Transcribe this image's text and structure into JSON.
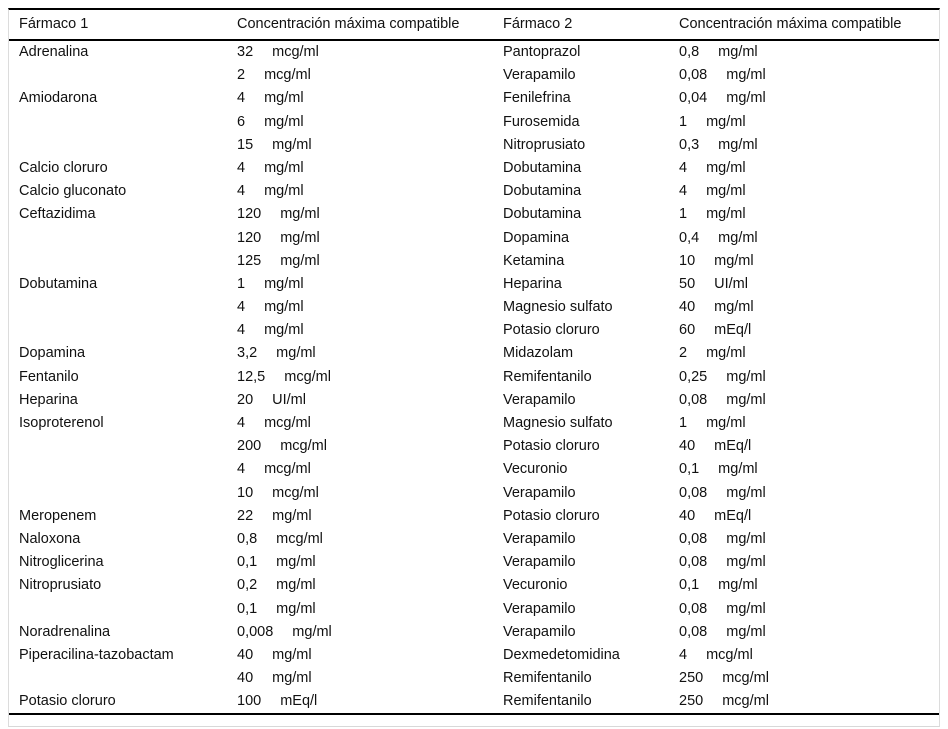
{
  "table": {
    "headers": [
      "Fármaco 1",
      "Concentración máxima compatible",
      "Fármaco 2",
      "Concentración máxima compatible"
    ],
    "rows": [
      {
        "f1": "Adrenalina",
        "v1": "32",
        "u1": "mcg/ml",
        "f2": "Pantoprazol",
        "v2": "0,8",
        "u2": "mg/ml"
      },
      {
        "f1": "",
        "v1": "2",
        "u1": "mcg/ml",
        "f2": "Verapamilo",
        "v2": "0,08",
        "u2": "mg/ml"
      },
      {
        "f1": "Amiodarona",
        "v1": "4",
        "u1": "mg/ml",
        "f2": "Fenilefrina",
        "v2": "0,04",
        "u2": "mg/ml"
      },
      {
        "f1": "",
        "v1": "6",
        "u1": "mg/ml",
        "f2": "Furosemida",
        "v2": "1",
        "u2": "mg/ml"
      },
      {
        "f1": "",
        "v1": "15",
        "u1": "mg/ml",
        "f2": "Nitroprusiato",
        "v2": "0,3",
        "u2": "mg/ml"
      },
      {
        "f1": "Calcio cloruro",
        "v1": "4",
        "u1": "mg/ml",
        "f2": "Dobutamina",
        "v2": "4",
        "u2": "mg/ml"
      },
      {
        "f1": "Calcio gluconato",
        "v1": "4",
        "u1": "mg/ml",
        "f2": "Dobutamina",
        "v2": "4",
        "u2": "mg/ml"
      },
      {
        "f1": "Ceftazidima",
        "v1": "120",
        "u1": "mg/ml",
        "f2": "Dobutamina",
        "v2": "1",
        "u2": "mg/ml"
      },
      {
        "f1": "",
        "v1": "120",
        "u1": "mg/ml",
        "f2": "Dopamina",
        "v2": "0,4",
        "u2": "mg/ml"
      },
      {
        "f1": "",
        "v1": "125",
        "u1": "mg/ml",
        "f2": "Ketamina",
        "v2": "10",
        "u2": "mg/ml"
      },
      {
        "f1": "Dobutamina",
        "v1": "1",
        "u1": "mg/ml",
        "f2": "Heparina",
        "v2": "50",
        "u2": "UI/ml"
      },
      {
        "f1": "",
        "v1": "4",
        "u1": "mg/ml",
        "f2": "Magnesio sulfato",
        "v2": "40",
        "u2": "mg/ml"
      },
      {
        "f1": "",
        "v1": "4",
        "u1": "mg/ml",
        "f2": "Potasio cloruro",
        "v2": "60",
        "u2": "mEq/l"
      },
      {
        "f1": "Dopamina",
        "v1": "3,2",
        "u1": "mg/ml",
        "f2": "Midazolam",
        "v2": "2",
        "u2": "mg/ml"
      },
      {
        "f1": "Fentanilo",
        "v1": "12,5",
        "u1": "mcg/ml",
        "f2": "Remifentanilo",
        "v2": "0,25",
        "u2": "mg/ml"
      },
      {
        "f1": "Heparina",
        "v1": "20",
        "u1": "UI/ml",
        "f2": "Verapamilo",
        "v2": "0,08",
        "u2": "mg/ml"
      },
      {
        "f1": "Isoproterenol",
        "v1": "4",
        "u1": "mcg/ml",
        "f2": "Magnesio sulfato",
        "v2": "1",
        "u2": "mg/ml"
      },
      {
        "f1": "",
        "v1": "200",
        "u1": "mcg/ml",
        "f2": "Potasio cloruro",
        "v2": "40",
        "u2": "mEq/l"
      },
      {
        "f1": "",
        "v1": "4",
        "u1": "mcg/ml",
        "f2": "Vecuronio",
        "v2": "0,1",
        "u2": "mg/ml"
      },
      {
        "f1": "",
        "v1": "10",
        "u1": "mcg/ml",
        "f2": "Verapamilo",
        "v2": "0,08",
        "u2": "mg/ml"
      },
      {
        "f1": "Meropenem",
        "v1": "22",
        "u1": "mg/ml",
        "f2": "Potasio cloruro",
        "v2": "40",
        "u2": "mEq/l"
      },
      {
        "f1": "Naloxona",
        "v1": "0,8",
        "u1": "mcg/ml",
        "f2": "Verapamilo",
        "v2": "0,08",
        "u2": "mg/ml"
      },
      {
        "f1": "Nitroglicerina",
        "v1": "0,1",
        "u1": "mg/ml",
        "f2": "Verapamilo",
        "v2": "0,08",
        "u2": "mg/ml"
      },
      {
        "f1": "Nitroprusiato",
        "v1": "0,2",
        "u1": "mg/ml",
        "f2": "Vecuronio",
        "v2": "0,1",
        "u2": "mg/ml"
      },
      {
        "f1": "",
        "v1": "0,1",
        "u1": "mg/ml",
        "f2": "Verapamilo",
        "v2": "0,08",
        "u2": "mg/ml"
      },
      {
        "f1": "Noradrenalina",
        "v1": "0,008",
        "u1": "mg/ml",
        "f2": "Verapamilo",
        "v2": "0,08",
        "u2": "mg/ml"
      },
      {
        "f1": "Piperacilina-tazobactam",
        "v1": "40",
        "u1": "mg/ml",
        "f2": "Dexmedetomidina",
        "v2": "4",
        "u2": "mcg/ml"
      },
      {
        "f1": "",
        "v1": "40",
        "u1": "mg/ml",
        "f2": "Remifentanilo",
        "v2": "250",
        "u2": "mcg/ml"
      },
      {
        "f1": "Potasio cloruro",
        "v1": "100",
        "u1": "mEq/l",
        "f2": "Remifentanilo",
        "v2": "250",
        "u2": "mcg/ml"
      }
    ]
  },
  "colors": {
    "rule": "#000000",
    "hairline": "#d8d8d8",
    "text": "#111111",
    "background": "#ffffff"
  }
}
